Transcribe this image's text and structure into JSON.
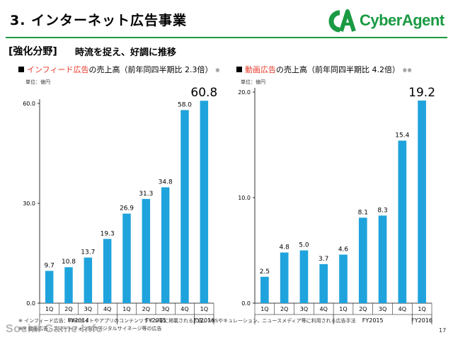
{
  "header": {
    "title": "3. インターネット広告事業",
    "logo_text": "CyberAgent",
    "brand_color": "#1a9a43"
  },
  "section": {
    "label": "[強化分野]",
    "description": "時流を捉え、好調に推移"
  },
  "colors": {
    "bar": "#1fa3dc",
    "highlight": "#e83828",
    "axis": "#000000"
  },
  "chart_data": [
    {
      "type": "bar",
      "heading_prefix": "インフィード広告",
      "heading_suffix": "の売上高（前年同四半期比 2.3倍）",
      "heading_note": "※",
      "unit_label": "単位：億円",
      "categories": [
        "1Q",
        "2Q",
        "3Q",
        "4Q",
        "1Q",
        "2Q",
        "3Q",
        "4Q",
        "1Q"
      ],
      "year_groups": [
        {
          "label": "FY2014",
          "span": 4
        },
        {
          "label": "FY2015",
          "span": 4
        },
        {
          "label": "FY2016",
          "span": 1
        }
      ],
      "values": [
        9.7,
        10.8,
        13.7,
        19.3,
        26.9,
        31.3,
        34.8,
        58.0,
        60.8
      ],
      "value_labels": [
        "9.7",
        "10.8",
        "13.7",
        "19.3",
        "26.9",
        "31.3",
        "34.8",
        "58.0",
        "60.8"
      ],
      "highlight_last": true,
      "ylim": [
        0,
        60
      ],
      "yticks": [
        0,
        30,
        60
      ],
      "ytick_labels": [
        "0.0",
        "30.0",
        "60.0"
      ]
    },
    {
      "type": "bar",
      "heading_prefix": "動画広告",
      "heading_suffix": "の売上高（前年同四半期比 4.2倍）",
      "heading_note": "※※",
      "unit_label": "単位：億円",
      "categories": [
        "1Q",
        "2Q",
        "3Q",
        "4Q",
        "1Q",
        "2Q",
        "3Q",
        "4Q",
        "1Q"
      ],
      "year_groups": [
        {
          "label": "",
          "span": 4
        },
        {
          "label": "FY2015",
          "span": 4
        },
        {
          "label": "FY2016",
          "span": 1
        }
      ],
      "values": [
        2.5,
        4.8,
        5.0,
        3.7,
        4.6,
        8.1,
        8.3,
        15.4,
        19.2
      ],
      "value_labels": [
        "2.5",
        "4.8",
        "5.0",
        "3.7",
        "4.6",
        "8.1",
        "8.3",
        "15.4",
        "19.2"
      ],
      "highlight_last": true,
      "ylim": [
        0,
        20
      ],
      "yticks": [
        0,
        10,
        20
      ],
      "ytick_labels": [
        "0.0",
        "10.0",
        "20.0"
      ]
    }
  ],
  "footnotes": [
    "※ インフィード広告：Webサイトやアプリのコンテンツライン等に掲載される広告。SNSやキュレーション、ニュースメディア等に利用される広告手法",
    "※※ 動画広告：スマートフォン向けデジタルサイネージ等の広告"
  ],
  "watermark": "Social Game Info",
  "page_number": "17"
}
